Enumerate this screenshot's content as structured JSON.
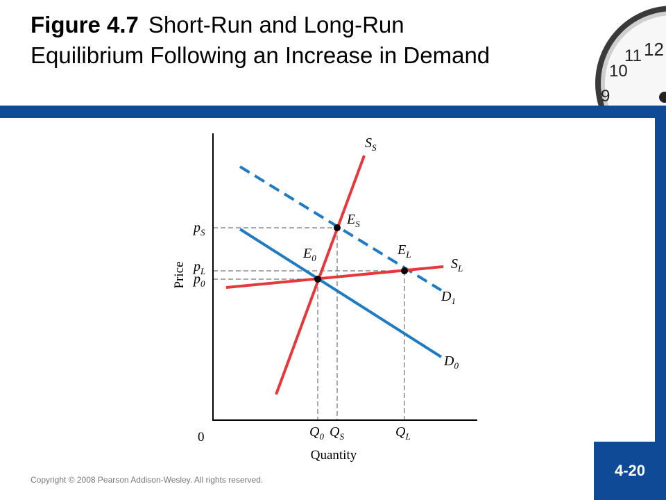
{
  "title": {
    "number": "Figure 4.7",
    "text": "Short-Run and Long-Run Equilibrium Following an Increase in Demand"
  },
  "footer": {
    "copyright": "Copyright © 2008 Pearson Addison-Wesley. All rights reserved.",
    "page": "4-20"
  },
  "clock": {
    "numerals": [
      "12",
      "11",
      "10",
      "9"
    ]
  },
  "diagram": {
    "axis_labels": {
      "y": "Price",
      "x": "Quantity",
      "origin": "0"
    },
    "price_labels": {
      "p_s": {
        "main": "p",
        "sub": "S"
      },
      "p_l": {
        "main": "p",
        "sub": "L"
      },
      "p_0": {
        "main": "p",
        "sub": "0"
      }
    },
    "quantity_labels": {
      "q_0": {
        "main": "Q",
        "sub": "0"
      },
      "q_s": {
        "main": "Q",
        "sub": "S"
      },
      "q_l": {
        "main": "Q",
        "sub": "L"
      }
    },
    "curve_labels": {
      "s_s": {
        "main": "S",
        "sub": "S"
      },
      "s_l": {
        "main": "S",
        "sub": "L"
      },
      "d_1": {
        "main": "D",
        "sub": "1"
      },
      "d_0": {
        "main": "D",
        "sub": "0"
      }
    },
    "point_labels": {
      "e_s": {
        "main": "E",
        "sub": "S"
      },
      "e_l": {
        "main": "E",
        "sub": "L"
      },
      "e_0": {
        "main": "E",
        "sub": "0"
      }
    },
    "colors": {
      "supply": "#e5383b",
      "demand": "#1f7bc1",
      "axis": "#000000",
      "guide": "#555555"
    }
  }
}
